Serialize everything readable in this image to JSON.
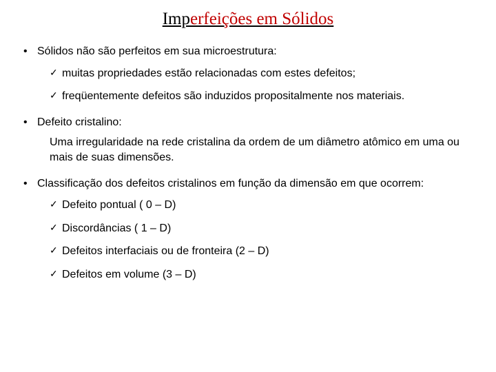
{
  "colors": {
    "title_accent": "#c00000",
    "text": "#000000",
    "background": "#ffffff"
  },
  "title_parts": {
    "a": "Imp",
    "b": "erfeições em Sólidos"
  },
  "bullets": [
    {
      "text": "Sólidos não são perfeitos em sua microestrutura:",
      "sub": [
        "muitas propriedades estão relacionadas com estes defeitos;",
        "freqüentemente defeitos são induzidos propositalmente nos materiais."
      ]
    },
    {
      "text": "Defeito cristalino:",
      "block": "Uma irregularidade na rede cristalina da ordem de um diâmetro atômico em uma ou mais de suas dimensões."
    },
    {
      "text": "Classificação dos defeitos cristalinos em função da dimensão em que ocorrem:",
      "sub": [
        "Defeito pontual ( 0 – D)",
        "Discordâncias ( 1 – D)",
        "Defeitos interfaciais ou de fronteira (2 – D)",
        "Defeitos em volume (3 – D)"
      ]
    }
  ]
}
